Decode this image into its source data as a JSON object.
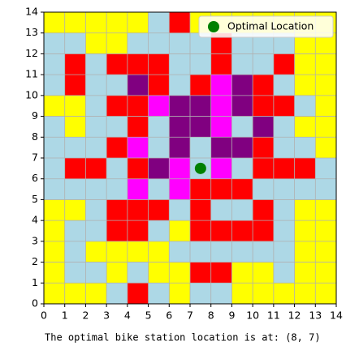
{
  "chart_data": {
    "type": "heatmap",
    "xlim": [
      0,
      14
    ],
    "ylim": [
      0,
      14
    ],
    "xticks": [
      0,
      1,
      2,
      3,
      4,
      5,
      6,
      7,
      8,
      9,
      10,
      11,
      12,
      13,
      14
    ],
    "yticks": [
      0,
      1,
      2,
      3,
      4,
      5,
      6,
      7,
      8,
      9,
      10,
      11,
      12,
      13,
      14
    ],
    "grid": true,
    "cmap": [
      "#ffff00",
      "#add8e6",
      "#ff0000",
      "#800080",
      "#ff00ff"
    ],
    "z": [
      [
        0,
        0,
        0,
        1,
        2,
        1,
        0,
        1,
        1,
        0,
        0,
        0,
        0,
        0
      ],
      [
        0,
        1,
        1,
        0,
        1,
        0,
        0,
        2,
        2,
        0,
        0,
        1,
        0,
        0
      ],
      [
        0,
        1,
        0,
        0,
        0,
        0,
        1,
        1,
        1,
        1,
        1,
        1,
        0,
        0
      ],
      [
        0,
        1,
        1,
        2,
        2,
        1,
        0,
        2,
        2,
        2,
        2,
        1,
        0,
        0
      ],
      [
        0,
        0,
        1,
        2,
        2,
        2,
        1,
        2,
        1,
        1,
        2,
        1,
        0,
        0
      ],
      [
        1,
        1,
        1,
        1,
        4,
        1,
        4,
        2,
        2,
        2,
        1,
        1,
        1,
        1
      ],
      [
        1,
        2,
        2,
        1,
        2,
        3,
        4,
        1,
        4,
        1,
        2,
        2,
        2,
        1
      ],
      [
        1,
        1,
        1,
        2,
        4,
        1,
        3,
        1,
        3,
        3,
        2,
        1,
        1,
        0
      ],
      [
        1,
        0,
        1,
        1,
        2,
        1,
        3,
        3,
        4,
        1,
        3,
        1,
        0,
        0
      ],
      [
        0,
        0,
        1,
        2,
        2,
        4,
        3,
        3,
        4,
        3,
        2,
        2,
        1,
        0
      ],
      [
        1,
        2,
        1,
        1,
        3,
        2,
        1,
        2,
        4,
        3,
        2,
        1,
        0,
        0
      ],
      [
        1,
        2,
        1,
        2,
        2,
        2,
        1,
        1,
        2,
        1,
        1,
        2,
        0,
        0
      ],
      [
        1,
        1,
        0,
        0,
        1,
        1,
        1,
        1,
        2,
        1,
        1,
        1,
        0,
        0
      ],
      [
        0,
        0,
        0,
        0,
        0,
        1,
        2,
        0,
        0,
        0,
        0,
        0,
        0,
        0
      ]
    ],
    "series": [
      {
        "name": "Optimal Location",
        "color": "#008000",
        "x": [
          7.5
        ],
        "y": [
          6.5
        ]
      }
    ],
    "legend": "upper right",
    "caption": "The optimal bike station location is at: (8, 7)"
  }
}
